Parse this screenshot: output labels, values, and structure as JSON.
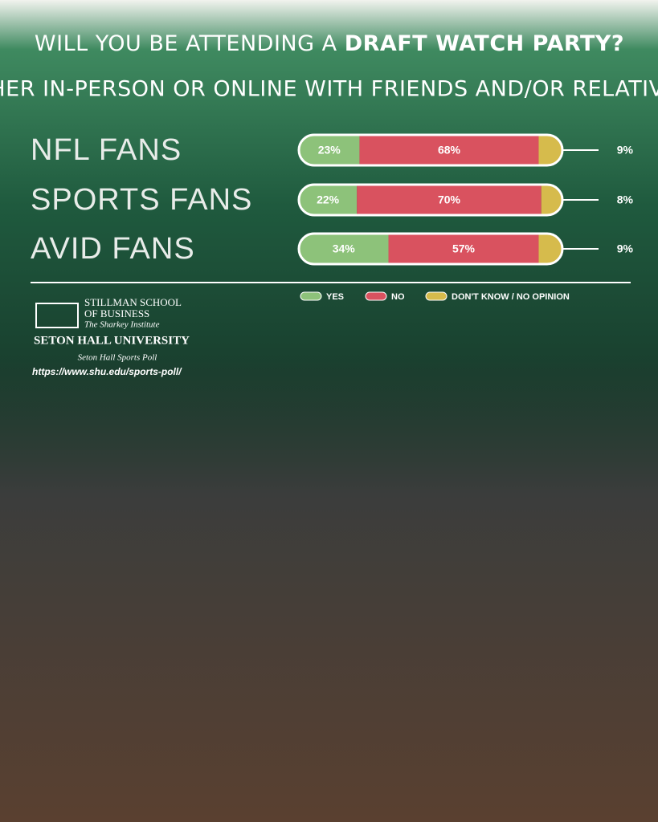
{
  "chart_data": {
    "type": "bar",
    "orientation": "horizontal",
    "stacked": true,
    "title": [
      "WILL YOU BE ATTENDING A",
      "DRAFT WATCH PARTY?",
      "EITHER IN-PERSON OR ONLINE WITH FRIENDS AND/OR RELATIVES?"
    ],
    "categories": [
      "NFL FANS",
      "SPORTS FANS",
      "AVID FANS"
    ],
    "series": [
      {
        "name": "YES",
        "color": "#8dc27a",
        "values": [
          23,
          22,
          34
        ],
        "value_labels": [
          "23%",
          "22%",
          "34%"
        ]
      },
      {
        "name": "NO",
        "color": "#d9525f",
        "values": [
          68,
          70,
          57
        ],
        "value_labels": [
          "68%",
          "70%",
          "57%"
        ]
      },
      {
        "name": "DON'T KNOW / NO OPINION",
        "color": "#d6bb4c",
        "values": [
          9,
          8,
          9
        ],
        "value_labels": [
          "9%",
          "8%",
          "9%"
        ]
      }
    ],
    "legend": "bottom-right"
  },
  "source": {
    "school": [
      "STILLMAN SCHOOL",
      "OF BUSINESS",
      "The Sharkey Institute"
    ],
    "university": "SETON HALL UNIVERSITY",
    "poll": "Seton Hall Sports Poll",
    "url": "https://www.shu.edu/sports-poll/"
  }
}
